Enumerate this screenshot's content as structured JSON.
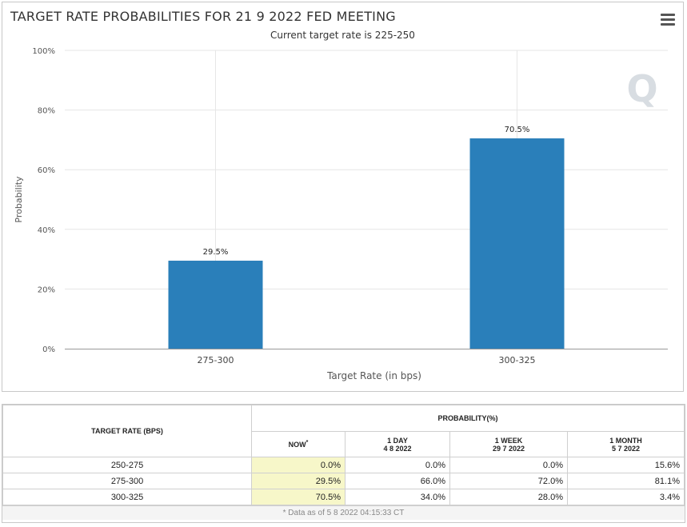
{
  "chart": {
    "title": "TARGET RATE PROBABILITIES FOR 21 9 2022 FED MEETING",
    "subtitle": "Current target rate is 225-250",
    "watermark": "Q"
  },
  "chart_data": {
    "type": "bar",
    "title": "TARGET RATE PROBABILITIES FOR 21 9 2022 FED MEETING",
    "subtitle": "Current target rate is 225-250",
    "categories": [
      "275-300",
      "300-325"
    ],
    "values": [
      29.5,
      70.5
    ],
    "data_labels": [
      "29.5%",
      "70.5%"
    ],
    "xlabel": "Target Rate (in bps)",
    "ylabel": "Probability",
    "ylim": [
      0,
      100
    ],
    "yticks": [
      "0%",
      "20%",
      "40%",
      "60%",
      "80%",
      "100%"
    ],
    "grid": true,
    "bar_color": "#2a7fba"
  },
  "table": {
    "col_target": "TARGET RATE (BPS)",
    "col_probability": "PROBABILITY(%)",
    "col_now": "NOW",
    "now_mark": "*",
    "col_1day": "1 DAY",
    "col_1day_date": "4 8 2022",
    "col_1week": "1 WEEK",
    "col_1week_date": "29 7 2022",
    "col_1month": "1 MONTH",
    "col_1month_date": "5 7 2022",
    "rows": [
      {
        "rate": "250-275",
        "now": "0.0%",
        "day": "0.0%",
        "week": "0.0%",
        "month": "15.6%"
      },
      {
        "rate": "275-300",
        "now": "29.5%",
        "day": "66.0%",
        "week": "72.0%",
        "month": "81.1%"
      },
      {
        "rate": "300-325",
        "now": "70.5%",
        "day": "34.0%",
        "week": "28.0%",
        "month": "3.4%"
      }
    ],
    "footer": "* Data as of 5 8 2022 04:15:33 CT"
  }
}
